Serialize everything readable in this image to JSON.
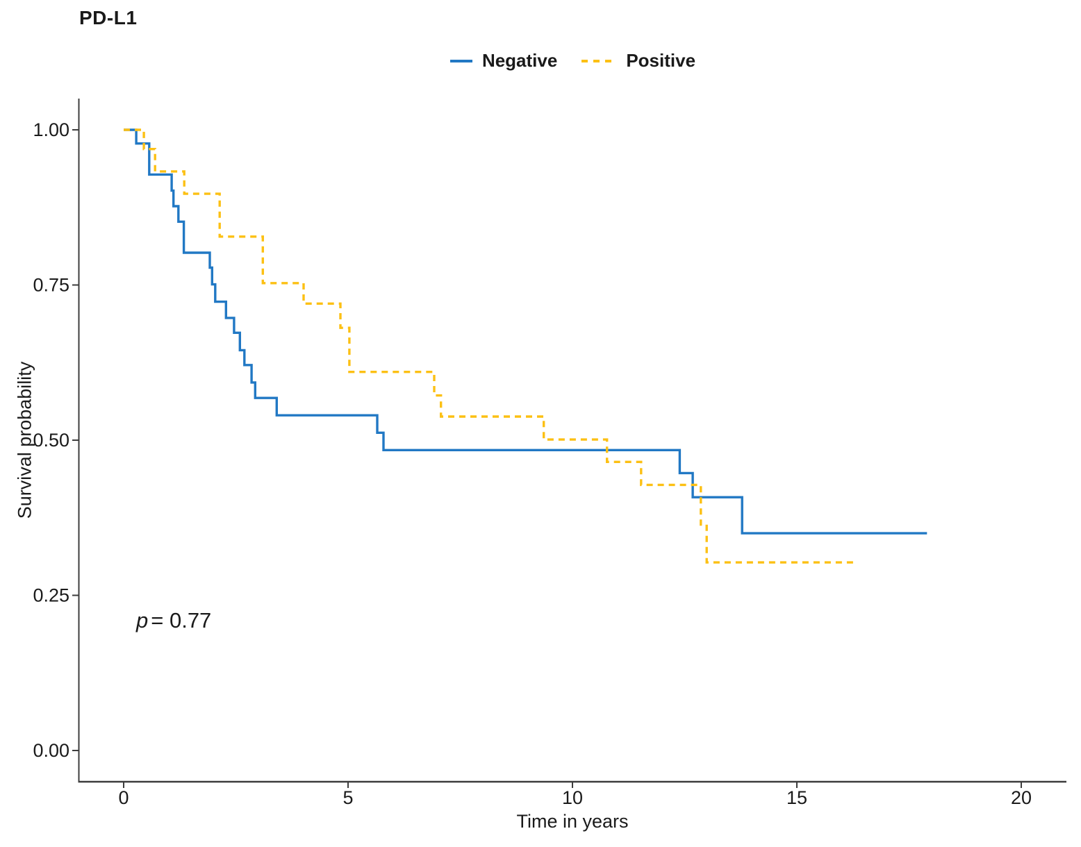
{
  "chart_data": {
    "type": "line",
    "subtype": "kaplan-meier-step",
    "title": "PD-L1",
    "xlabel": "Time in years",
    "ylabel": "Survival probability",
    "xlim": [
      0,
      20
    ],
    "ylim": [
      0.0,
      1.0
    ],
    "x_ticks": [
      0,
      5,
      10,
      15,
      20
    ],
    "y_ticks": [
      0.0,
      0.25,
      0.5,
      0.75,
      1.0
    ],
    "grid": false,
    "legend_position": "top-center",
    "p_value_text": "p = 0.77",
    "p_italic": "p",
    "p_rest": "= 0.77",
    "axis_color": "#3c3c3c",
    "text_color": "#1a1a1a",
    "series": [
      {
        "name": "Negative",
        "color": "#2178c4",
        "line_style": "solid",
        "points": [
          [
            0.0,
            1.0
          ],
          [
            0.28,
            0.978
          ],
          [
            0.57,
            0.928
          ],
          [
            1.07,
            0.902
          ],
          [
            1.11,
            0.877
          ],
          [
            1.22,
            0.852
          ],
          [
            1.34,
            0.802
          ],
          [
            1.92,
            0.778
          ],
          [
            1.97,
            0.751
          ],
          [
            2.04,
            0.723
          ],
          [
            2.28,
            0.697
          ],
          [
            2.46,
            0.673
          ],
          [
            2.59,
            0.645
          ],
          [
            2.69,
            0.621
          ],
          [
            2.85,
            0.593
          ],
          [
            2.93,
            0.568
          ],
          [
            3.41,
            0.54
          ],
          [
            5.65,
            0.512
          ],
          [
            5.79,
            0.484
          ],
          [
            12.39,
            0.447
          ],
          [
            12.68,
            0.408
          ],
          [
            13.78,
            0.35
          ]
        ],
        "end_time": 17.9
      },
      {
        "name": "Positive",
        "color": "#fcc014",
        "line_style": "dashed",
        "points": [
          [
            0.0,
            1.0
          ],
          [
            0.45,
            0.969
          ],
          [
            0.7,
            0.933
          ],
          [
            1.35,
            0.897
          ],
          [
            2.14,
            0.828
          ],
          [
            3.1,
            0.753
          ],
          [
            4.01,
            0.72
          ],
          [
            4.83,
            0.681
          ],
          [
            5.03,
            0.61
          ],
          [
            6.92,
            0.572
          ],
          [
            7.07,
            0.538
          ],
          [
            9.36,
            0.501
          ],
          [
            10.77,
            0.465
          ],
          [
            11.53,
            0.428
          ],
          [
            12.86,
            0.364
          ],
          [
            12.99,
            0.303
          ]
        ],
        "end_time": 16.3
      }
    ]
  }
}
